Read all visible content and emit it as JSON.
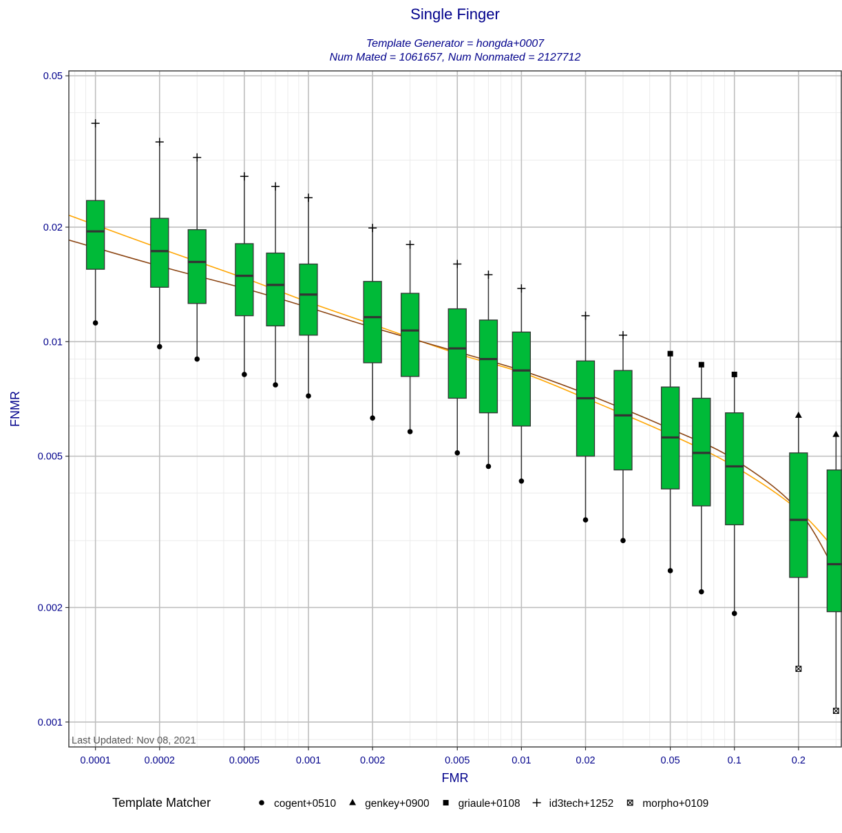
{
  "chart_data": {
    "type": "box",
    "title": "Single Finger",
    "subtitle_lines": [
      "Template Generator = hongda+0007",
      "Num Mated = 1061657, Num Nonmated = 2127712"
    ],
    "xlabel": "FMR",
    "ylabel": "FNMR",
    "x_scale": "log",
    "y_scale": "log",
    "xlim": [
      7.5e-05,
      0.32
    ],
    "ylim": [
      0.00086,
      0.0515
    ],
    "x_ticks": [
      {
        "value": 0.0001,
        "label": "0.0001"
      },
      {
        "value": 0.0002,
        "label": "0.0002"
      },
      {
        "value": 0.0005,
        "label": "0.0005"
      },
      {
        "value": 0.001,
        "label": "0.001"
      },
      {
        "value": 0.002,
        "label": "0.002"
      },
      {
        "value": 0.005,
        "label": "0.005"
      },
      {
        "value": 0.01,
        "label": "0.01"
      },
      {
        "value": 0.02,
        "label": "0.02"
      },
      {
        "value": 0.05,
        "label": "0.05"
      },
      {
        "value": 0.1,
        "label": "0.1"
      },
      {
        "value": 0.2,
        "label": "0.2"
      }
    ],
    "y_ticks": [
      {
        "value": 0.001,
        "label": "0.001"
      },
      {
        "value": 0.002,
        "label": "0.002"
      },
      {
        "value": 0.005,
        "label": "0.005"
      },
      {
        "value": 0.01,
        "label": "0.01"
      },
      {
        "value": 0.02,
        "label": "0.02"
      },
      {
        "value": 0.05,
        "label": "0.05"
      }
    ],
    "grid": true,
    "box_fill": "#00BA38",
    "box_outline": "#333333",
    "boxes": [
      {
        "fmr": 0.0001,
        "q1": 0.0155,
        "median": 0.0195,
        "q3": 0.0235,
        "whisker_low": 0.0112,
        "whisker_high": 0.0375,
        "min_matcher": "cogent+0510",
        "max_matcher": "id3tech+1252"
      },
      {
        "fmr": 0.0002,
        "q1": 0.0139,
        "median": 0.0173,
        "q3": 0.0211,
        "whisker_low": 0.0097,
        "whisker_high": 0.0335,
        "min_matcher": "cogent+0510",
        "max_matcher": "id3tech+1252"
      },
      {
        "fmr": 0.0003,
        "q1": 0.0126,
        "median": 0.0162,
        "q3": 0.0197,
        "whisker_low": 0.009,
        "whisker_high": 0.0305,
        "min_matcher": "cogent+0510",
        "max_matcher": "id3tech+1252"
      },
      {
        "fmr": 0.0005,
        "q1": 0.0117,
        "median": 0.0149,
        "q3": 0.0181,
        "whisker_low": 0.0082,
        "whisker_high": 0.0272,
        "min_matcher": "cogent+0510",
        "max_matcher": "id3tech+1252"
      },
      {
        "fmr": 0.0007,
        "q1": 0.011,
        "median": 0.0141,
        "q3": 0.0171,
        "whisker_low": 0.0077,
        "whisker_high": 0.0256,
        "min_matcher": "cogent+0510",
        "max_matcher": "id3tech+1252"
      },
      {
        "fmr": 0.001,
        "q1": 0.0104,
        "median": 0.0133,
        "q3": 0.016,
        "whisker_low": 0.0072,
        "whisker_high": 0.0239,
        "min_matcher": "cogent+0510",
        "max_matcher": "id3tech+1252"
      },
      {
        "fmr": 0.002,
        "q1": 0.0088,
        "median": 0.0116,
        "q3": 0.0144,
        "whisker_low": 0.0063,
        "whisker_high": 0.0199,
        "min_matcher": "cogent+0510",
        "max_matcher": "id3tech+1252"
      },
      {
        "fmr": 0.003,
        "q1": 0.0081,
        "median": 0.0107,
        "q3": 0.0134,
        "whisker_low": 0.0058,
        "whisker_high": 0.018,
        "min_matcher": "cogent+0510",
        "max_matcher": "id3tech+1252"
      },
      {
        "fmr": 0.005,
        "q1": 0.0071,
        "median": 0.0096,
        "q3": 0.0122,
        "whisker_low": 0.0051,
        "whisker_high": 0.016,
        "min_matcher": "cogent+0510",
        "max_matcher": "id3tech+1252"
      },
      {
        "fmr": 0.007,
        "q1": 0.0065,
        "median": 0.009,
        "q3": 0.0114,
        "whisker_low": 0.0047,
        "whisker_high": 0.015,
        "min_matcher": "cogent+0510",
        "max_matcher": "id3tech+1252"
      },
      {
        "fmr": 0.01,
        "q1": 0.006,
        "median": 0.0084,
        "q3": 0.0106,
        "whisker_low": 0.0043,
        "whisker_high": 0.0138,
        "min_matcher": "cogent+0510",
        "max_matcher": "id3tech+1252"
      },
      {
        "fmr": 0.02,
        "q1": 0.005,
        "median": 0.0071,
        "q3": 0.0089,
        "whisker_low": 0.0034,
        "whisker_high": 0.0117,
        "min_matcher": "cogent+0510",
        "max_matcher": "id3tech+1252"
      },
      {
        "fmr": 0.03,
        "q1": 0.0046,
        "median": 0.0064,
        "q3": 0.0084,
        "whisker_low": 0.003,
        "whisker_high": 0.0104,
        "min_matcher": "cogent+0510",
        "max_matcher": "id3tech+1252"
      },
      {
        "fmr": 0.05,
        "q1": 0.0041,
        "median": 0.0056,
        "q3": 0.0076,
        "whisker_low": 0.0025,
        "whisker_high": 0.0093,
        "min_matcher": "cogent+0510",
        "max_matcher": "griaule+0108"
      },
      {
        "fmr": 0.07,
        "q1": 0.0037,
        "median": 0.0051,
        "q3": 0.0071,
        "whisker_low": 0.0022,
        "whisker_high": 0.0087,
        "min_matcher": "cogent+0510",
        "max_matcher": "griaule+0108"
      },
      {
        "fmr": 0.1,
        "q1": 0.0033,
        "median": 0.0047,
        "q3": 0.0065,
        "whisker_low": 0.00193,
        "whisker_high": 0.0082,
        "min_matcher": "cogent+0510",
        "max_matcher": "griaule+0108"
      },
      {
        "fmr": 0.2,
        "q1": 0.0024,
        "median": 0.0034,
        "q3": 0.0051,
        "whisker_low": 0.00138,
        "whisker_high": 0.0064,
        "min_matcher": "morpho+0109",
        "max_matcher": "genkey+0900"
      },
      {
        "fmr": 0.3,
        "q1": 0.00195,
        "median": 0.0026,
        "q3": 0.0046,
        "whisker_low": 0.00107,
        "whisker_high": 0.0057,
        "min_matcher": "morpho+0109",
        "max_matcher": "genkey+0900"
      }
    ],
    "curves": [
      {
        "color": "#FFA500",
        "x": [
          7.5e-05,
          0.0002,
          0.0005,
          0.001,
          0.002,
          0.005,
          0.01,
          0.02,
          0.05,
          0.1,
          0.2,
          0.32
        ],
        "y": [
          0.0215,
          0.0176,
          0.0147,
          0.0127,
          0.0111,
          0.0093,
          0.0083,
          0.0071,
          0.0057,
          0.0047,
          0.0036,
          0.0027
        ]
      },
      {
        "color": "#8B4513",
        "x": [
          7.5e-05,
          0.0002,
          0.0005,
          0.001,
          0.002,
          0.005,
          0.01,
          0.02,
          0.05,
          0.1,
          0.2,
          0.32
        ],
        "y": [
          0.0185,
          0.0158,
          0.0138,
          0.0123,
          0.0109,
          0.0094,
          0.0084,
          0.0073,
          0.0059,
          0.0049,
          0.0036,
          0.0023
        ]
      }
    ],
    "legend": {
      "title": "Template Matcher",
      "position": "bottom",
      "items": [
        {
          "label": "cogent+0510",
          "shape": "circle"
        },
        {
          "label": "genkey+0900",
          "shape": "triangle"
        },
        {
          "label": "griaule+0108",
          "shape": "square"
        },
        {
          "label": "id3tech+1252",
          "shape": "plus"
        },
        {
          "label": "morpho+0109",
          "shape": "boxed-x"
        }
      ]
    },
    "annotation": "Last Updated: Nov 08, 2021"
  }
}
